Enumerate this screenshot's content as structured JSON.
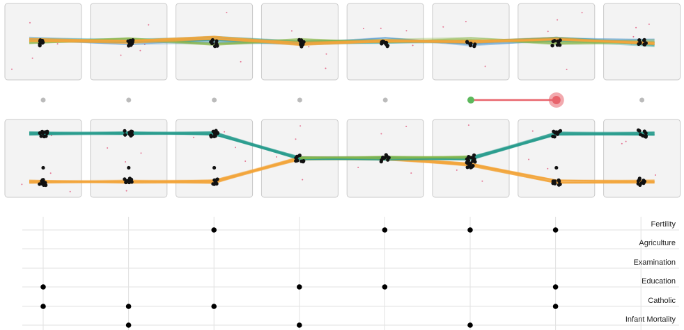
{
  "chart_data": {
    "type": "parallel-sets-scatter-matrix",
    "dimensions": [
      "Fertility",
      "Agriculture",
      "Examination",
      "Education",
      "Catholic",
      "Infant Mortality"
    ],
    "panel_count": 8,
    "rows": [
      {
        "name": "",
        "levels": [
          0.42,
          0.47,
          0.38,
          0.55,
          0.49,
          0.53,
          0.4,
          0.6,
          0.44,
          0.51,
          0.36,
          0.58,
          0.46,
          0.5,
          0.39,
          0.56,
          0.43,
          0.48
        ]
      },
      {
        "name": "",
        "upper_cluster": [
          0.18,
          0.18,
          0.18,
          0.5,
          0.5,
          0.5,
          0.18,
          0.18
        ],
        "lower_cluster": [
          0.8,
          0.8,
          0.8,
          0.5,
          0.5,
          0.58,
          0.8,
          0.8
        ]
      }
    ],
    "connectors": [
      {
        "panel": 0,
        "state": "inactive"
      },
      {
        "panel": 1,
        "state": "inactive"
      },
      {
        "panel": 2,
        "state": "inactive"
      },
      {
        "panel": 3,
        "state": "inactive"
      },
      {
        "panel": 4,
        "state": "inactive"
      },
      {
        "panel": 5,
        "state": "start",
        "end_panel": 6
      },
      {
        "panel": 7,
        "state": "inactive"
      }
    ],
    "matrix": {
      "Fertility": [
        0,
        0,
        1,
        0,
        1,
        1,
        1,
        0
      ],
      "Agriculture": [
        0,
        0,
        0,
        0,
        0,
        0,
        0,
        0
      ],
      "Examination": [
        0,
        0,
        0,
        0,
        0,
        0,
        0,
        0
      ],
      "Education": [
        1,
        0,
        0,
        1,
        1,
        0,
        1,
        0
      ],
      "Catholic": [
        1,
        1,
        1,
        0,
        0,
        0,
        1,
        0
      ],
      "Infant Mortality": [
        0,
        1,
        0,
        1,
        0,
        1,
        0,
        0
      ]
    },
    "colors": {
      "teal": "#2a9d8f",
      "orange": "#f4a73b",
      "green": "#8ab84a",
      "blue": "#5a9fd0",
      "point": "#111111",
      "outlier": "#e0557a",
      "panel_bg": "#f3f3f3",
      "panel_border": "#c9c9c9",
      "connector_green": "#5cb85c",
      "connector_red": "#e8636b",
      "connector_gray": "#bbbbbb",
      "grid": "#e2e2e2"
    }
  }
}
